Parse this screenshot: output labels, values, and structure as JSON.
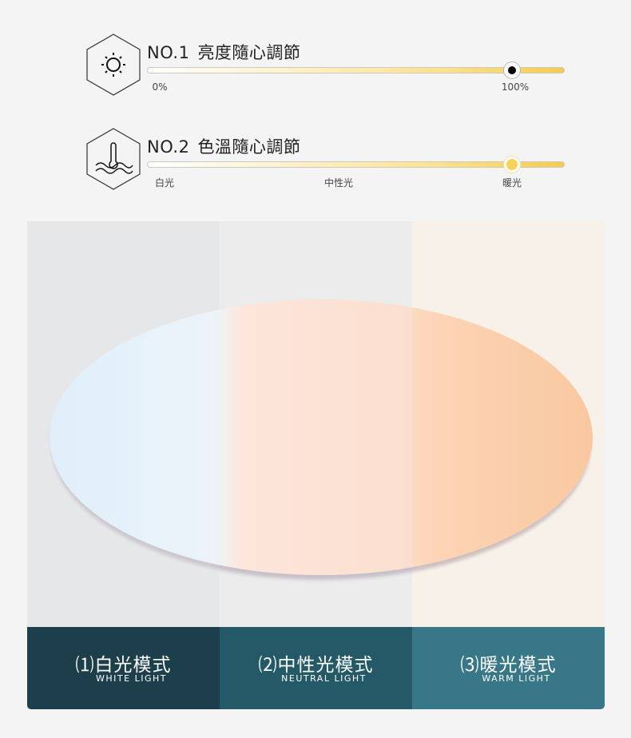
{
  "brightness": {
    "number": "NO.1",
    "title": "亮度隨心調節",
    "icon": "sun-icon",
    "min_label": "0%",
    "max_label": "100%",
    "knob_level": 0.876
  },
  "color_temp": {
    "number": "NO.2",
    "title": "色溫隨心調節",
    "icon": "thermometer-icon",
    "labels": [
      "白光",
      "中性光",
      "暖光"
    ],
    "knob_level": 0.876
  },
  "modes": [
    {
      "label": "⑴白光模式",
      "sub": "WHITE LIGHT",
      "color": "#1c3f4b"
    },
    {
      "label": "⑵中性光模式",
      "sub": "NEUTRAL LIGHT",
      "color": "#245967"
    },
    {
      "label": "⑶暖光模式",
      "sub": "WARM LIGHT",
      "color": "#377787"
    }
  ]
}
